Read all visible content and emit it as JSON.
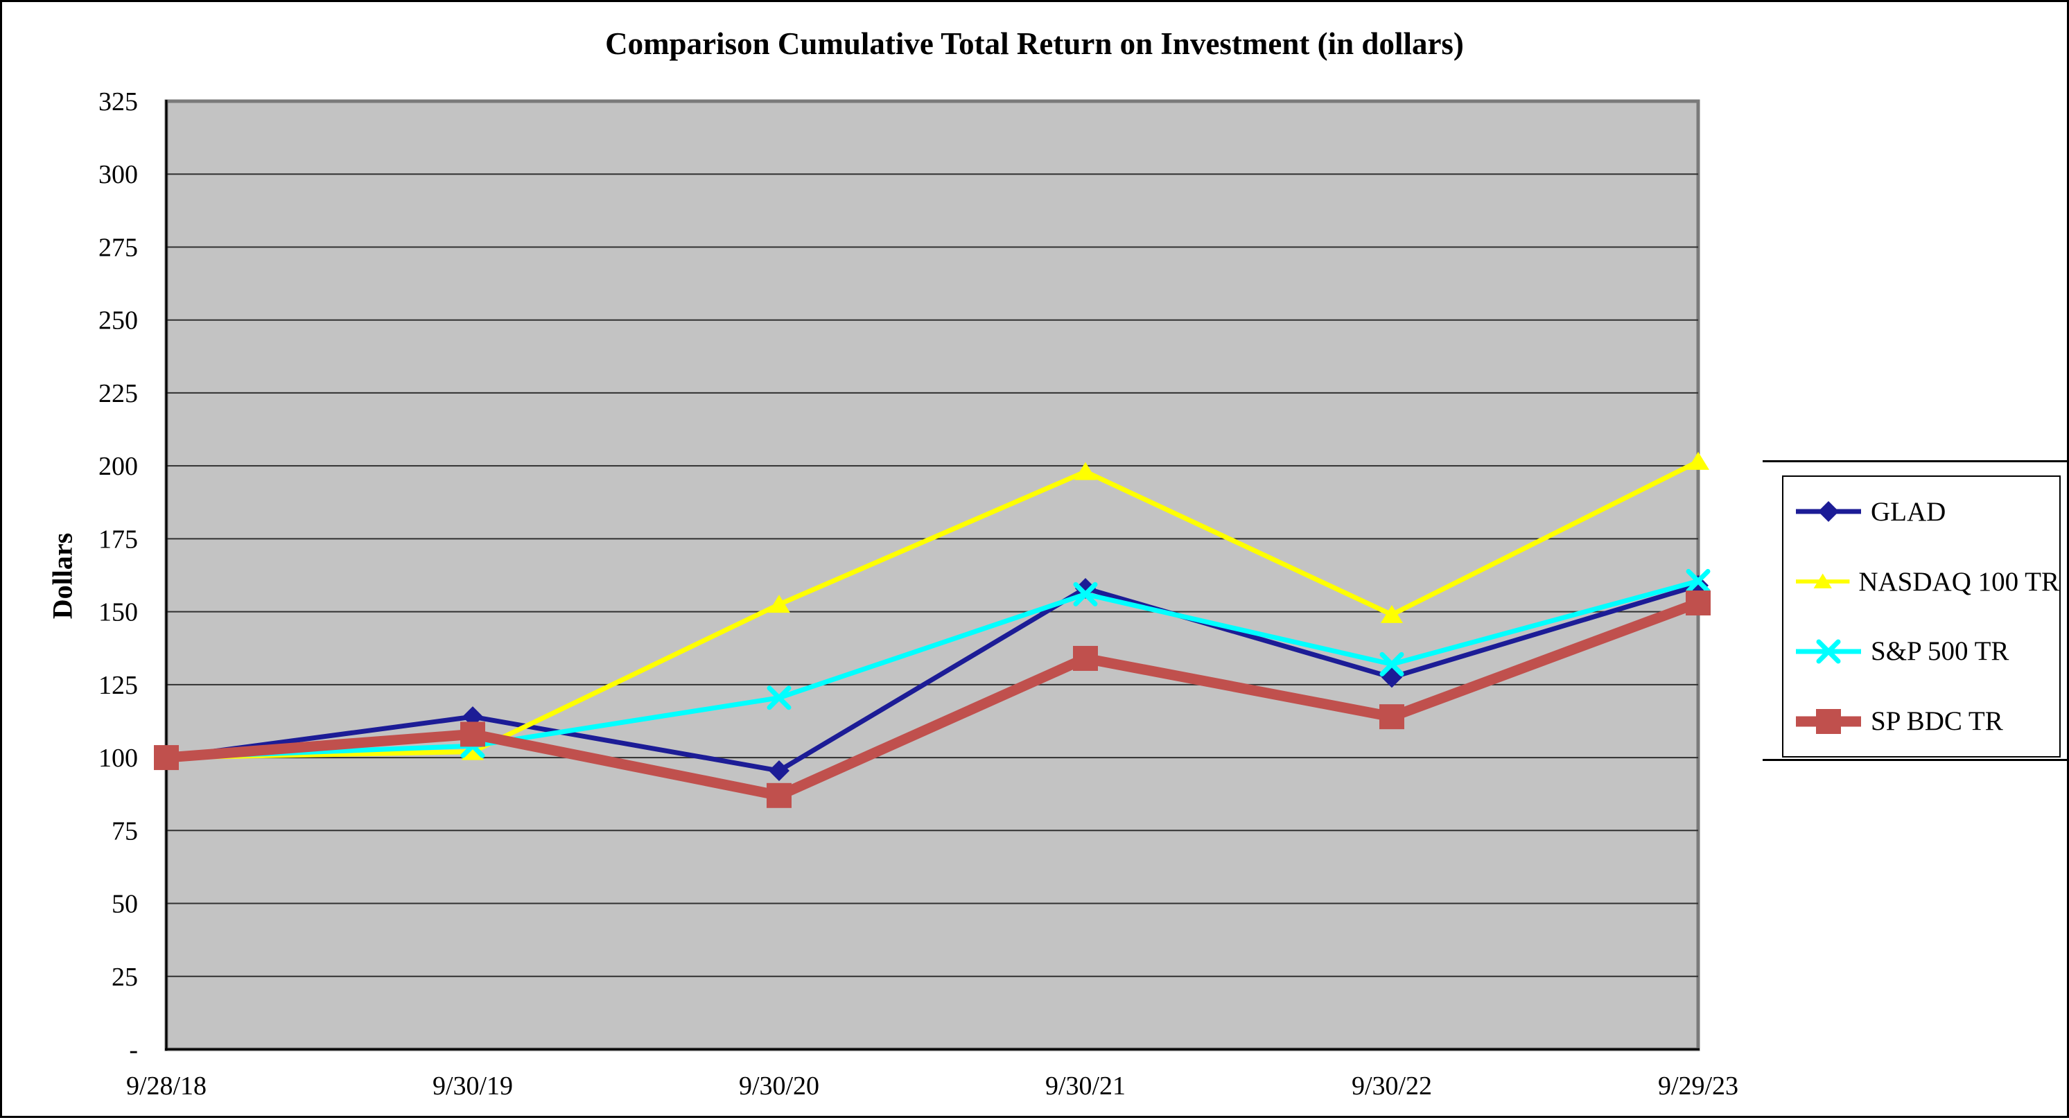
{
  "chart_data": {
    "type": "line",
    "title": "Comparison Cumulative Total Return on Investment (in dollars)",
    "xlabel": "",
    "ylabel": "Dollars",
    "categories": [
      "9/28/18",
      "9/30/19",
      "9/30/20",
      "9/30/21",
      "9/30/22",
      "9/29/23"
    ],
    "ylim": [
      0,
      325
    ],
    "ytick_step": 25,
    "zero_tick_label": "-",
    "grid": "horizontal",
    "gridline_color": "#303030",
    "plot_background": "#C3C3C3",
    "plot_border_color": "#7A7A7A",
    "axis_line_color": "#000000",
    "legend_position": "right",
    "series": [
      {
        "name": "GLAD",
        "color": "#1C1C96",
        "marker": "diamond",
        "thickness": "normal",
        "values": [
          100,
          114,
          95.5,
          158,
          127.5,
          159
        ]
      },
      {
        "name": "NASDAQ 100 TR",
        "color": "#FFFF00",
        "marker": "triangle",
        "thickness": "normal",
        "values": [
          100,
          102,
          152.5,
          198,
          149,
          201.5
        ]
      },
      {
        "name": "S&P 500 TR",
        "color": "#00FFFF",
        "marker": "x",
        "thickness": "normal",
        "values": [
          100,
          104,
          120.5,
          156,
          132,
          160.5
        ]
      },
      {
        "name": "SP BDC TR",
        "color": "#C0504D",
        "marker": "square",
        "thickness": "thick",
        "values": [
          100,
          108,
          87,
          134,
          114,
          153
        ]
      }
    ]
  }
}
